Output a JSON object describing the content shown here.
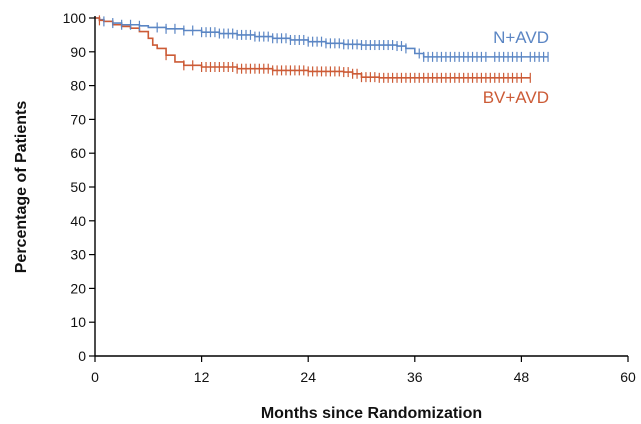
{
  "chart_data": {
    "type": "line",
    "chart_kind": "kaplan-meier survival curve",
    "xlabel": "Months since Randomization",
    "ylabel": "Percentage of Patients",
    "xlim": [
      0,
      60
    ],
    "ylim": [
      0,
      100
    ],
    "xticks": [
      0,
      12,
      24,
      36,
      48,
      60
    ],
    "yticks": [
      0,
      10,
      20,
      30,
      40,
      50,
      60,
      70,
      80,
      90,
      100
    ],
    "grid": false,
    "legend": "inline labels at right end of curves",
    "series": [
      {
        "name": "N+AVD",
        "color": "#5b86c4",
        "x": [
          0,
          0.5,
          1,
          2,
          3,
          4,
          5,
          6,
          8,
          10,
          12,
          14,
          16,
          18,
          20,
          22,
          24,
          26,
          28,
          30,
          32,
          34,
          35,
          36,
          37,
          40,
          44,
          48,
          51
        ],
        "y": [
          100,
          99.5,
          99,
          98.5,
          98,
          98,
          97.7,
          97.2,
          96.8,
          96.3,
          95.8,
          95.4,
          95,
          94.5,
          94,
          93.5,
          93,
          92.5,
          92.2,
          92,
          92,
          91.7,
          91,
          89.5,
          88.5,
          88.5,
          88.5,
          88.5,
          88.5
        ],
        "censor_x": [
          1,
          2,
          3,
          4,
          5,
          7,
          8,
          9,
          10,
          11,
          12,
          12.5,
          13,
          13.5,
          14,
          14.5,
          15,
          15.5,
          16,
          16.5,
          17,
          17.5,
          18,
          18.5,
          19,
          19.5,
          20,
          20.5,
          21,
          21.5,
          22,
          22.5,
          23,
          23.5,
          24,
          24.5,
          25,
          25.5,
          26,
          26.5,
          27,
          27.5,
          28,
          28.5,
          29,
          29.5,
          30,
          30.5,
          31,
          31.5,
          32,
          32.5,
          33,
          33.5,
          34,
          34.5,
          35,
          36.5,
          37,
          37.5,
          38,
          38.5,
          39,
          39.5,
          40,
          40.5,
          41,
          41.5,
          42,
          42.5,
          43,
          43.5,
          44,
          45,
          45.5,
          46,
          46.5,
          47,
          47.5,
          48,
          49,
          49.5,
          50,
          50.5,
          51
        ]
      },
      {
        "name": "BV+AVD",
        "color": "#cc5b36",
        "x": [
          0,
          0.5,
          1,
          2,
          3,
          4,
          5,
          6,
          6.5,
          7,
          8,
          9,
          10,
          12,
          16,
          20,
          24,
          28,
          29,
          30,
          32,
          36,
          40,
          44,
          48,
          49
        ],
        "y": [
          100,
          99.3,
          99,
          98,
          97.5,
          97,
          96,
          94,
          92,
          91,
          89,
          87,
          86,
          85.5,
          85,
          84.5,
          84.2,
          84,
          83.5,
          82.5,
          82.3,
          82.3,
          82.3,
          82.3,
          82.3,
          82.3
        ],
        "censor_x": [
          0.5,
          8,
          10,
          11,
          12,
          12.5,
          13,
          13.5,
          14,
          14.5,
          15,
          15.5,
          16,
          16.5,
          17,
          17.5,
          18,
          18.5,
          19,
          19.5,
          20,
          20.5,
          21,
          21.5,
          22,
          22.5,
          23,
          23.5,
          24,
          24.5,
          25,
          25.5,
          26,
          26.5,
          27,
          27.5,
          28,
          28.5,
          29,
          29.5,
          30,
          30.5,
          31,
          31.5,
          32,
          32.5,
          33,
          33.5,
          34,
          34.5,
          35,
          35.5,
          36,
          36.5,
          37,
          37.5,
          38,
          38.5,
          39,
          39.5,
          40,
          40.5,
          41,
          41.5,
          42,
          42.5,
          43,
          43.5,
          44,
          44.5,
          45,
          45.5,
          46,
          46.5,
          47,
          47.5,
          48,
          49
        ]
      }
    ]
  }
}
